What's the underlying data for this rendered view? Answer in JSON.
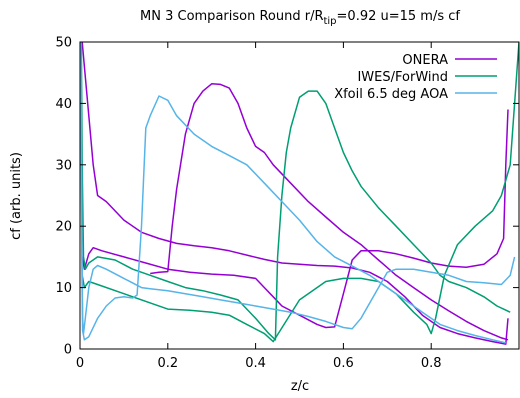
{
  "chart_data": {
    "type": "line",
    "title_main": "MN 3 Comparison Round r/R",
    "title_sub": "tip",
    "title_rest": "=0.92 u=15 m/s cf",
    "xlabel": "z/c",
    "ylabel": "cf (arb. units)",
    "xlim": [
      0,
      1
    ],
    "ylim": [
      0,
      50
    ],
    "xticks": [
      0,
      0.2,
      0.4,
      0.6,
      0.8
    ],
    "xtick_labels": [
      "0",
      "0.2",
      "0.4",
      "0.6",
      "0.8"
    ],
    "yticks": [
      0,
      10,
      20,
      30,
      40,
      50
    ],
    "ytick_labels": [
      "0",
      "10",
      "20",
      "30",
      "40",
      "50"
    ],
    "grid": false,
    "legend_position": "top-right",
    "series": [
      {
        "name": "ONERA",
        "color": "#9400d3",
        "lines": [
          [
            [
              0.005,
              50
            ],
            [
              0.01,
              46
            ],
            [
              0.02,
              38
            ],
            [
              0.03,
              30
            ],
            [
              0.04,
              25
            ],
            [
              0.06,
              24
            ],
            [
              0.1,
              21
            ],
            [
              0.14,
              19
            ],
            [
              0.18,
              18
            ],
            [
              0.22,
              17.2
            ],
            [
              0.26,
              16.8
            ],
            [
              0.3,
              16.5
            ],
            [
              0.34,
              16
            ],
            [
              0.38,
              15.3
            ],
            [
              0.42,
              14.6
            ],
            [
              0.46,
              14
            ],
            [
              0.5,
              13.8
            ],
            [
              0.54,
              13.6
            ],
            [
              0.58,
              13.5
            ],
            [
              0.62,
              13.2
            ],
            [
              0.66,
              12.5
            ],
            [
              0.7,
              11
            ],
            [
              0.74,
              8.5
            ],
            [
              0.78,
              5.5
            ],
            [
              0.82,
              3.5
            ],
            [
              0.86,
              2.5
            ],
            [
              0.9,
              1.8
            ],
            [
              0.94,
              1.2
            ],
            [
              0.97,
              0.8
            ],
            [
              0.975,
              5
            ]
          ],
          [
            [
              0.005,
              15
            ],
            [
              0.01,
              13
            ],
            [
              0.02,
              15.5
            ],
            [
              0.03,
              16.5
            ],
            [
              0.05,
              16
            ],
            [
              0.1,
              15
            ],
            [
              0.15,
              14
            ],
            [
              0.2,
              13
            ],
            [
              0.25,
              12.5
            ],
            [
              0.3,
              12.2
            ],
            [
              0.35,
              12
            ],
            [
              0.4,
              11.5
            ],
            [
              0.42,
              10
            ],
            [
              0.44,
              8.5
            ],
            [
              0.46,
              7
            ],
            [
              0.5,
              5.5
            ],
            [
              0.54,
              4
            ],
            [
              0.56,
              3.5
            ],
            [
              0.58,
              3.6
            ],
            [
              0.6,
              9
            ],
            [
              0.62,
              14.5
            ],
            [
              0.64,
              16
            ],
            [
              0.68,
              16
            ],
            [
              0.72,
              15.5
            ],
            [
              0.76,
              14.8
            ],
            [
              0.8,
              14
            ],
            [
              0.84,
              13.5
            ],
            [
              0.88,
              13.3
            ],
            [
              0.92,
              13.8
            ],
            [
              0.95,
              15.5
            ],
            [
              0.965,
              18
            ],
            [
              0.97,
              30
            ],
            [
              0.975,
              39
            ]
          ],
          [
            [
              0.16,
              12.3
            ],
            [
              0.18,
              12.5
            ],
            [
              0.2,
              12.6
            ],
            [
              0.21,
              20
            ],
            [
              0.22,
              26
            ],
            [
              0.24,
              35
            ],
            [
              0.26,
              40
            ],
            [
              0.28,
              42
            ],
            [
              0.3,
              43.2
            ],
            [
              0.32,
              43.1
            ],
            [
              0.34,
              42.5
            ],
            [
              0.36,
              40
            ],
            [
              0.38,
              36
            ],
            [
              0.4,
              33
            ],
            [
              0.42,
              32
            ],
            [
              0.44,
              30
            ],
            [
              0.48,
              27
            ],
            [
              0.52,
              24
            ],
            [
              0.56,
              21.5
            ],
            [
              0.6,
              19
            ],
            [
              0.64,
              17
            ],
            [
              0.68,
              14.5
            ],
            [
              0.72,
              12
            ],
            [
              0.76,
              10
            ],
            [
              0.8,
              8
            ],
            [
              0.84,
              6.2
            ],
            [
              0.88,
              4.5
            ],
            [
              0.92,
              3
            ],
            [
              0.96,
              1.8
            ],
            [
              0.975,
              1.5
            ]
          ]
        ]
      },
      {
        "name": "IWES/ForWind",
        "color": "#009e73",
        "lines": [
          [
            [
              0.003,
              50
            ],
            [
              0.005,
              30
            ],
            [
              0.008,
              15
            ],
            [
              0.012,
              13
            ],
            [
              0.02,
              14
            ],
            [
              0.04,
              15
            ],
            [
              0.08,
              14.5
            ],
            [
              0.12,
              13
            ],
            [
              0.16,
              12
            ],
            [
              0.2,
              11
            ],
            [
              0.24,
              10
            ],
            [
              0.28,
              9.5
            ],
            [
              0.32,
              8.8
            ],
            [
              0.36,
              8
            ],
            [
              0.4,
              5
            ],
            [
              0.43,
              2.5
            ],
            [
              0.445,
              1.5
            ],
            [
              0.45,
              15
            ],
            [
              0.46,
              25
            ],
            [
              0.47,
              32
            ],
            [
              0.48,
              36
            ],
            [
              0.5,
              41
            ],
            [
              0.52,
              42
            ],
            [
              0.54,
              42
            ],
            [
              0.56,
              40
            ],
            [
              0.58,
              36
            ],
            [
              0.6,
              32
            ],
            [
              0.62,
              29
            ],
            [
              0.64,
              26.5
            ],
            [
              0.68,
              23
            ],
            [
              0.72,
              20
            ],
            [
              0.76,
              17
            ],
            [
              0.8,
              14
            ],
            [
              0.82,
              12
            ],
            [
              0.84,
              11
            ],
            [
              0.88,
              10
            ],
            [
              0.92,
              8.5
            ],
            [
              0.95,
              7
            ],
            [
              0.98,
              6
            ]
          ],
          [
            [
              0.005,
              12
            ],
            [
              0.01,
              10
            ],
            [
              0.02,
              11
            ],
            [
              0.04,
              10.5
            ],
            [
              0.1,
              9
            ],
            [
              0.16,
              7.5
            ],
            [
              0.2,
              6.5
            ],
            [
              0.25,
              6.3
            ],
            [
              0.3,
              6
            ],
            [
              0.34,
              5.5
            ],
            [
              0.38,
              4
            ],
            [
              0.42,
              2.5
            ],
            [
              0.44,
              1.2
            ],
            [
              0.5,
              8
            ],
            [
              0.56,
              11
            ],
            [
              0.6,
              11.5
            ],
            [
              0.64,
              11.5
            ],
            [
              0.68,
              11
            ],
            [
              0.72,
              9
            ],
            [
              0.76,
              6
            ],
            [
              0.79,
              4
            ],
            [
              0.8,
              2.5
            ],
            [
              0.81,
              5
            ],
            [
              0.83,
              12
            ],
            [
              0.86,
              17
            ],
            [
              0.9,
              20
            ],
            [
              0.94,
              22.5
            ],
            [
              0.96,
              25
            ],
            [
              0.98,
              30
            ],
            [
              1,
              50
            ]
          ]
        ]
      },
      {
        "name": "Xfoil 6.5 deg AOA",
        "color": "#56b4e9",
        "lines": [
          [
            [
              0.002,
              50
            ],
            [
              0.004,
              20
            ],
            [
              0.006,
              5
            ],
            [
              0.008,
              2.5
            ],
            [
              0.012,
              5
            ],
            [
              0.02,
              10
            ],
            [
              0.03,
              13
            ],
            [
              0.04,
              13.6
            ],
            [
              0.06,
              13
            ],
            [
              0.1,
              11.5
            ],
            [
              0.14,
              10
            ],
            [
              0.16,
              9.8
            ],
            [
              0.2,
              9.5
            ],
            [
              0.24,
              9
            ],
            [
              0.28,
              8.5
            ],
            [
              0.32,
              8
            ],
            [
              0.36,
              7.5
            ],
            [
              0.4,
              7
            ],
            [
              0.44,
              6.5
            ],
            [
              0.48,
              6
            ],
            [
              0.52,
              5.3
            ],
            [
              0.56,
              4.5
            ],
            [
              0.6,
              3.5
            ],
            [
              0.62,
              3.3
            ],
            [
              0.64,
              5
            ],
            [
              0.68,
              10
            ],
            [
              0.7,
              12.5
            ],
            [
              0.72,
              13
            ],
            [
              0.76,
              13
            ],
            [
              0.8,
              12.5
            ],
            [
              0.84,
              12
            ],
            [
              0.88,
              11
            ],
            [
              0.92,
              10.8
            ],
            [
              0.96,
              10.5
            ],
            [
              0.98,
              12
            ],
            [
              0.99,
              15
            ]
          ],
          [
            [
              0.002,
              45
            ],
            [
              0.004,
              15
            ],
            [
              0.006,
              3
            ],
            [
              0.01,
              1.5
            ],
            [
              0.02,
              2
            ],
            [
              0.04,
              5
            ],
            [
              0.06,
              7
            ],
            [
              0.08,
              8.3
            ],
            [
              0.1,
              8.5
            ],
            [
              0.12,
              8.3
            ],
            [
              0.13,
              8.8
            ],
            [
              0.14,
              20
            ],
            [
              0.15,
              36
            ],
            [
              0.16,
              38
            ],
            [
              0.18,
              41.2
            ],
            [
              0.2,
              40.5
            ],
            [
              0.22,
              38
            ],
            [
              0.26,
              35
            ],
            [
              0.3,
              33
            ],
            [
              0.34,
              31.5
            ],
            [
              0.38,
              30
            ],
            [
              0.42,
              27
            ],
            [
              0.46,
              24
            ],
            [
              0.5,
              21
            ],
            [
              0.54,
              17.5
            ],
            [
              0.58,
              15
            ],
            [
              0.62,
              13.5
            ],
            [
              0.66,
              12
            ],
            [
              0.7,
              10
            ],
            [
              0.74,
              8
            ],
            [
              0.78,
              6
            ],
            [
              0.82,
              4
            ],
            [
              0.86,
              3
            ],
            [
              0.9,
              2.2
            ],
            [
              0.94,
              1.5
            ],
            [
              0.97,
              1
            ]
          ]
        ]
      }
    ]
  }
}
